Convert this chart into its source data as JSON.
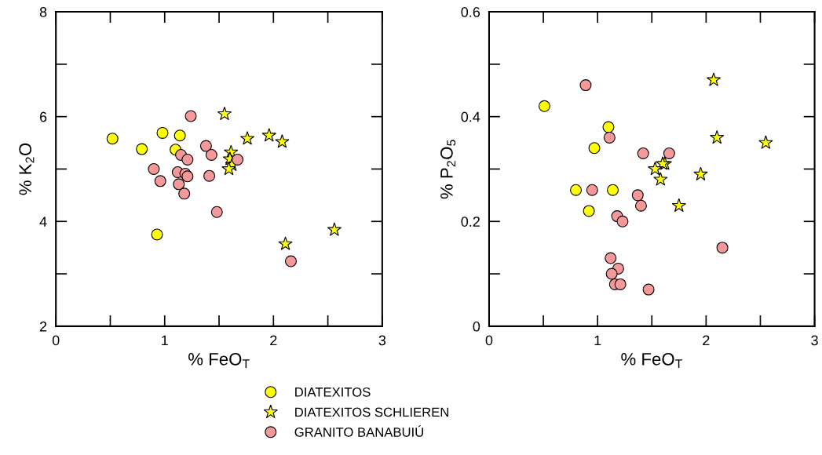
{
  "chart_data": [
    {
      "type": "scatter",
      "xlabel": "% FeO$_{T}$",
      "ylabel": "% K$_{2}$O",
      "xlim": [
        0,
        3
      ],
      "ylim": [
        2,
        8
      ],
      "xticks": [
        0,
        {
          "value": 0.5,
          "label": null
        },
        1,
        {
          "value": 1.5,
          "label": null
        },
        2,
        {
          "value": 2.5,
          "label": null
        },
        3
      ],
      "yticks": [
        2,
        {
          "value": 3,
          "label": null
        },
        4,
        {
          "value": 5,
          "label": null
        },
        6,
        {
          "value": 7,
          "label": null
        },
        8
      ],
      "grid": false,
      "legend": "bottom",
      "series": [
        {
          "name": "DIATEXITOS",
          "color": "#ffff00",
          "marker": "circle",
          "x": [
            0.52,
            0.79,
            0.98,
            1.14,
            1.1,
            0.93
          ],
          "values": [
            5.58,
            5.38,
            5.69,
            5.64,
            5.37,
            3.75
          ]
        },
        {
          "name": "DIATEXITOS SCHLIEREN",
          "color": "#ffff00",
          "marker": "star",
          "x": [
            1.55,
            1.76,
            1.96,
            2.08,
            1.61,
            1.6,
            1.62,
            1.59,
            2.11,
            2.56
          ],
          "values": [
            6.05,
            5.58,
            5.64,
            5.52,
            5.32,
            5.19,
            5.08,
            5.0,
            3.57,
            3.84
          ]
        },
        {
          "name": "GRANITO BANABUIÚ",
          "color": "#f4989a",
          "marker": "circle",
          "x": [
            1.24,
            1.38,
            1.43,
            1.15,
            1.21,
            1.67,
            0.9,
            1.12,
            1.19,
            1.21,
            1.41,
            0.96,
            1.13,
            1.18,
            1.48,
            2.16
          ],
          "values": [
            6.01,
            5.44,
            5.27,
            5.27,
            5.18,
            5.18,
            5.0,
            4.94,
            4.91,
            4.86,
            4.87,
            4.77,
            4.71,
            4.53,
            4.18,
            3.24
          ]
        }
      ]
    },
    {
      "type": "scatter",
      "xlabel": "% FeO$_{T}$",
      "ylabel": "% P$_{2}$O$_{5}$",
      "xlim": [
        0,
        3
      ],
      "ylim": [
        0,
        0.6
      ],
      "xticks": [
        0,
        {
          "value": 0.5,
          "label": null
        },
        1,
        {
          "value": 1.5,
          "label": null
        },
        2,
        {
          "value": 2.5,
          "label": null
        },
        3
      ],
      "yticks": [
        0,
        {
          "value": 0.1,
          "label": null
        },
        0.2,
        {
          "value": 0.3,
          "label": null
        },
        0.4,
        {
          "value": 0.5,
          "label": null
        },
        0.6
      ],
      "grid": false,
      "series": [
        {
          "color": "#ffff00",
          "marker": "circle",
          "x": [
            0.51,
            1.1,
            0.97,
            0.8,
            1.14,
            0.92
          ],
          "values": [
            0.42,
            0.38,
            0.34,
            0.26,
            0.26,
            0.22
          ]
        },
        {
          "color": "#ffff00",
          "marker": "star",
          "x": [
            2.07,
            2.1,
            2.55,
            1.62,
            1.6,
            1.53,
            1.95,
            1.58,
            1.75
          ],
          "values": [
            0.47,
            0.36,
            0.35,
            0.31,
            0.31,
            0.3,
            0.29,
            0.28,
            0.23
          ]
        },
        {
          "color": "#f4989a",
          "marker": "circle",
          "x": [
            0.89,
            1.11,
            1.42,
            1.66,
            0.95,
            1.37,
            1.4,
            1.18,
            1.23,
            2.15,
            1.12,
            1.19,
            1.13,
            1.16,
            1.21,
            1.47
          ],
          "values": [
            0.46,
            0.36,
            0.33,
            0.33,
            0.26,
            0.25,
            0.23,
            0.21,
            0.2,
            0.15,
            0.13,
            0.11,
            0.1,
            0.08,
            0.08,
            0.07
          ]
        }
      ]
    }
  ]
}
